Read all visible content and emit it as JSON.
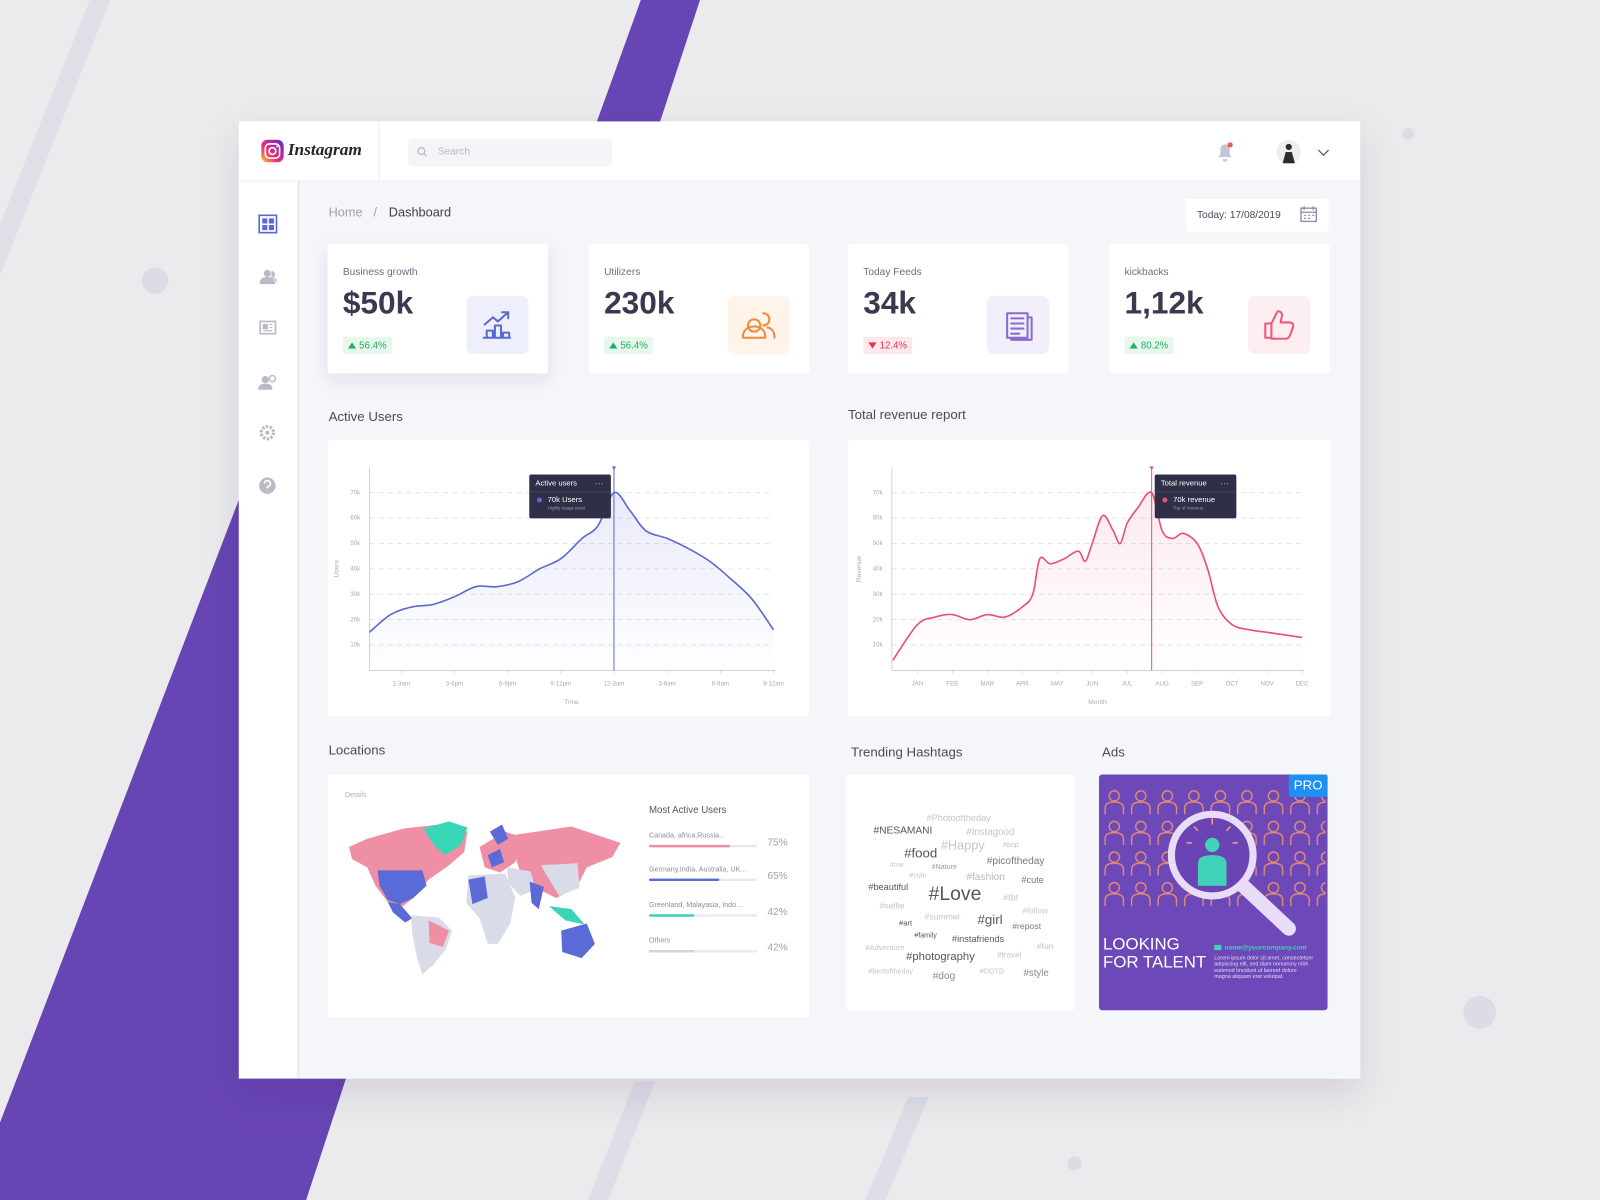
{
  "header": {
    "logo": "Instagram",
    "search": "Search"
  },
  "breadcrumb": {
    "items": [
      "Home",
      "Dashboard"
    ],
    "separator": "/"
  },
  "date": "Today: 17/08/2019",
  "stats": [
    {
      "label": "Business growth",
      "value": "$50k",
      "change": "56.4%",
      "direction": "up"
    },
    {
      "label": "Utilizers",
      "value": "230k",
      "change": "56.4%",
      "direction": "up"
    },
    {
      "label": "Today Feeds",
      "value": "34k",
      "change": "12.4%",
      "direction": "down"
    },
    {
      "label": "kickbacks",
      "value": "1,12k",
      "change": "80.2%",
      "direction": "up"
    }
  ],
  "chart_data": [
    {
      "type": "line",
      "title": "Active Users",
      "x_label": "Time",
      "y_label": "Users",
      "x": [
        -0.6,
        -0.2,
        0.2,
        0.6,
        1,
        1.4,
        1.8,
        2.2,
        2.6,
        3,
        3.4,
        3.7,
        4,
        4.3,
        4.6,
        5,
        5.4,
        5.8,
        6.2,
        6.6,
        7
      ],
      "series": [
        {
          "name": "Active users",
          "color": "#5b6ad0",
          "values": [
            15000,
            22000,
            25000,
            26000,
            29000,
            33000,
            33000,
            35000,
            40000,
            44000,
            52000,
            57000,
            70000,
            63000,
            55000,
            52000,
            48000,
            43000,
            36000,
            28000,
            16000
          ]
        }
      ],
      "xlim": [
        -0.6,
        7
      ],
      "xticks": [
        {
          "value": 0,
          "label": "1-3am"
        },
        {
          "value": 1,
          "label": "3-6pm"
        },
        {
          "value": 2,
          "label": "6-9pm"
        },
        {
          "value": 3,
          "label": "9-12pm"
        },
        {
          "value": 4,
          "label": "12-3am"
        },
        {
          "value": 5,
          "label": "3-6am"
        },
        {
          "value": 6,
          "label": "6-9am"
        },
        {
          "value": 7,
          "label": "9-12am"
        }
      ],
      "ylim": [
        0,
        80000
      ],
      "yticks": [
        {
          "value": 10000,
          "label": "10k"
        },
        {
          "value": 20000,
          "label": "20k"
        },
        {
          "value": 30000,
          "label": "30k"
        },
        {
          "value": 40000,
          "label": "40k"
        },
        {
          "value": 50000,
          "label": "50k"
        },
        {
          "value": 60000,
          "label": "60k"
        },
        {
          "value": 70000,
          "label": "70k"
        }
      ],
      "grid": true,
      "tooltip": {
        "x": 4,
        "label": "70k Users",
        "note": "Highly usage point"
      }
    },
    {
      "type": "line",
      "title": "Total revenue report",
      "x_label": "Month",
      "y_label": "Revenue",
      "x": [
        -0.7,
        0,
        0.5,
        1,
        1.5,
        2,
        2.5,
        3,
        3.3,
        3.5,
        3.8,
        4.2,
        4.6,
        4.8,
        5,
        5.3,
        5.6,
        5.8,
        6,
        6.3,
        6.7,
        7,
        7.3,
        7.6,
        8,
        8.3,
        8.6,
        9,
        9.5,
        10,
        11
      ],
      "series": [
        {
          "name": "Total revenue",
          "color": "#e8507a",
          "values": [
            4000,
            18000,
            21000,
            22000,
            20000,
            22000,
            21000,
            25000,
            30000,
            44000,
            42000,
            44000,
            47000,
            43000,
            50000,
            61000,
            55000,
            50000,
            58000,
            64000,
            70000,
            55000,
            52000,
            54000,
            50000,
            40000,
            25000,
            18000,
            16000,
            15000,
            13000
          ]
        }
      ],
      "xlim": [
        -0.7,
        11
      ],
      "xticks": [
        {
          "value": 0,
          "label": "JAN"
        },
        {
          "value": 1,
          "label": "FEB"
        },
        {
          "value": 2,
          "label": "MAR"
        },
        {
          "value": 3,
          "label": "APR"
        },
        {
          "value": 4,
          "label": "MAY"
        },
        {
          "value": 5,
          "label": "JUN"
        },
        {
          "value": 6,
          "label": "JUL"
        },
        {
          "value": 7,
          "label": "AUG"
        },
        {
          "value": 8,
          "label": "SEP"
        },
        {
          "value": 9,
          "label": "OCT"
        },
        {
          "value": 10,
          "label": "NOV"
        },
        {
          "value": 11,
          "label": "DEC"
        }
      ],
      "ylim": [
        0,
        80000
      ],
      "yticks": [
        {
          "value": 10000,
          "label": "10k"
        },
        {
          "value": 20000,
          "label": "20k"
        },
        {
          "value": 30000,
          "label": "30k"
        },
        {
          "value": 40000,
          "label": "40k"
        },
        {
          "value": 50000,
          "label": "50k"
        },
        {
          "value": 60000,
          "label": "60k"
        },
        {
          "value": 70000,
          "label": "70k"
        }
      ],
      "grid": true,
      "tooltip": {
        "x": 6.7,
        "label": "70k revenue",
        "note": "Top of revenue"
      }
    }
  ],
  "locations": {
    "title": "Locations",
    "subtitle": "Details",
    "list_title": "Most Active Users",
    "categories": [
      "Canada, africa,Russia...",
      "Germany,India, Australia, UK...",
      "Greenland, Malayasia, Indo...",
      "Others"
    ],
    "values": [
      75,
      65,
      42,
      42
    ],
    "value_labels": [
      "75%",
      "65%",
      "42%",
      "42%"
    ],
    "colors": [
      "#ef8fa5",
      "#5a6ad6",
      "#38d6b6",
      "#d0d2de"
    ],
    "xlim": [
      0,
      100
    ]
  },
  "hashtags": {
    "title": "Trending Hashtags",
    "tags": [
      "#Photooftheday",
      "#NESAMANI",
      "#Instagood",
      "#food",
      "#Happy",
      "#pop",
      "#me",
      "#Nature",
      "#picoftheday",
      "#cute",
      "#fashion",
      "#cute",
      "#beautiful",
      "#Love",
      "#tbt",
      "#selfie",
      "#follow",
      "#summer",
      "#art",
      "#girl",
      "#repost",
      "#family",
      "#instafriends",
      "#Adventure",
      "#fun",
      "#travel",
      "#photography",
      "#bestoftheday",
      "#OOTD",
      "#dog",
      "#style"
    ]
  },
  "ads": {
    "title": "Ads",
    "badge": "PRO",
    "headline": [
      "LOOKING",
      "FOR TALENT"
    ],
    "email": "name@yourcompany.com",
    "body": [
      "Lorem ipsum dolor sit amet, consectetuer",
      "adipiscing elit, sed diam nonummy nibh",
      "euismod tincidunt ut laoreet dolore",
      "magna aliquam erat volutpat."
    ]
  }
}
